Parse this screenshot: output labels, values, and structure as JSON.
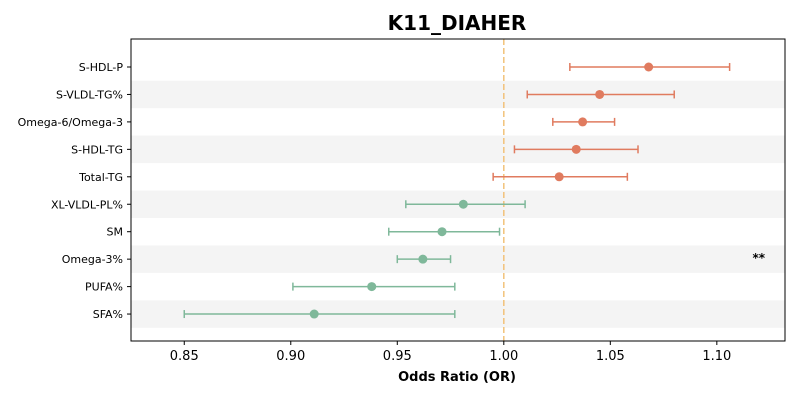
{
  "chart_data": {
    "type": "forest",
    "title": "K11_DIAHER",
    "xlabel": "Odds Ratio (OR)",
    "ylabel": "",
    "xlim": [
      0.825,
      1.132
    ],
    "xticks": [
      0.85,
      0.9,
      0.95,
      1.0,
      1.05,
      1.1
    ],
    "xtick_labels": [
      "0.85",
      "0.90",
      "0.95",
      "1.00",
      "1.05",
      "1.10"
    ],
    "reference_line": 1.0,
    "grid": false,
    "colors": {
      "positive": "#e07b5f",
      "negative": "#7fb89a",
      "reference": "#f2c27a",
      "band": "#f4f4f4"
    },
    "categories": [
      "S-HDL-P",
      "S-VLDL-TG%",
      "Omega-6/Omega-3",
      "S-HDL-TG",
      "Total-TG",
      "XL-VLDL-PL%",
      "SM",
      "Omega-3%",
      "PUFA%",
      "SFA%"
    ],
    "or": [
      1.068,
      1.045,
      1.037,
      1.034,
      1.026,
      0.981,
      0.971,
      0.962,
      0.938,
      0.911
    ],
    "ci_lower": [
      1.031,
      1.011,
      1.023,
      1.005,
      0.995,
      0.954,
      0.946,
      0.95,
      0.901,
      0.85
    ],
    "ci_upper": [
      1.106,
      1.08,
      1.052,
      1.063,
      1.058,
      1.01,
      0.998,
      0.975,
      0.977,
      0.977
    ],
    "annotations": [
      {
        "category": "Omega-3%",
        "text": "**"
      }
    ]
  }
}
